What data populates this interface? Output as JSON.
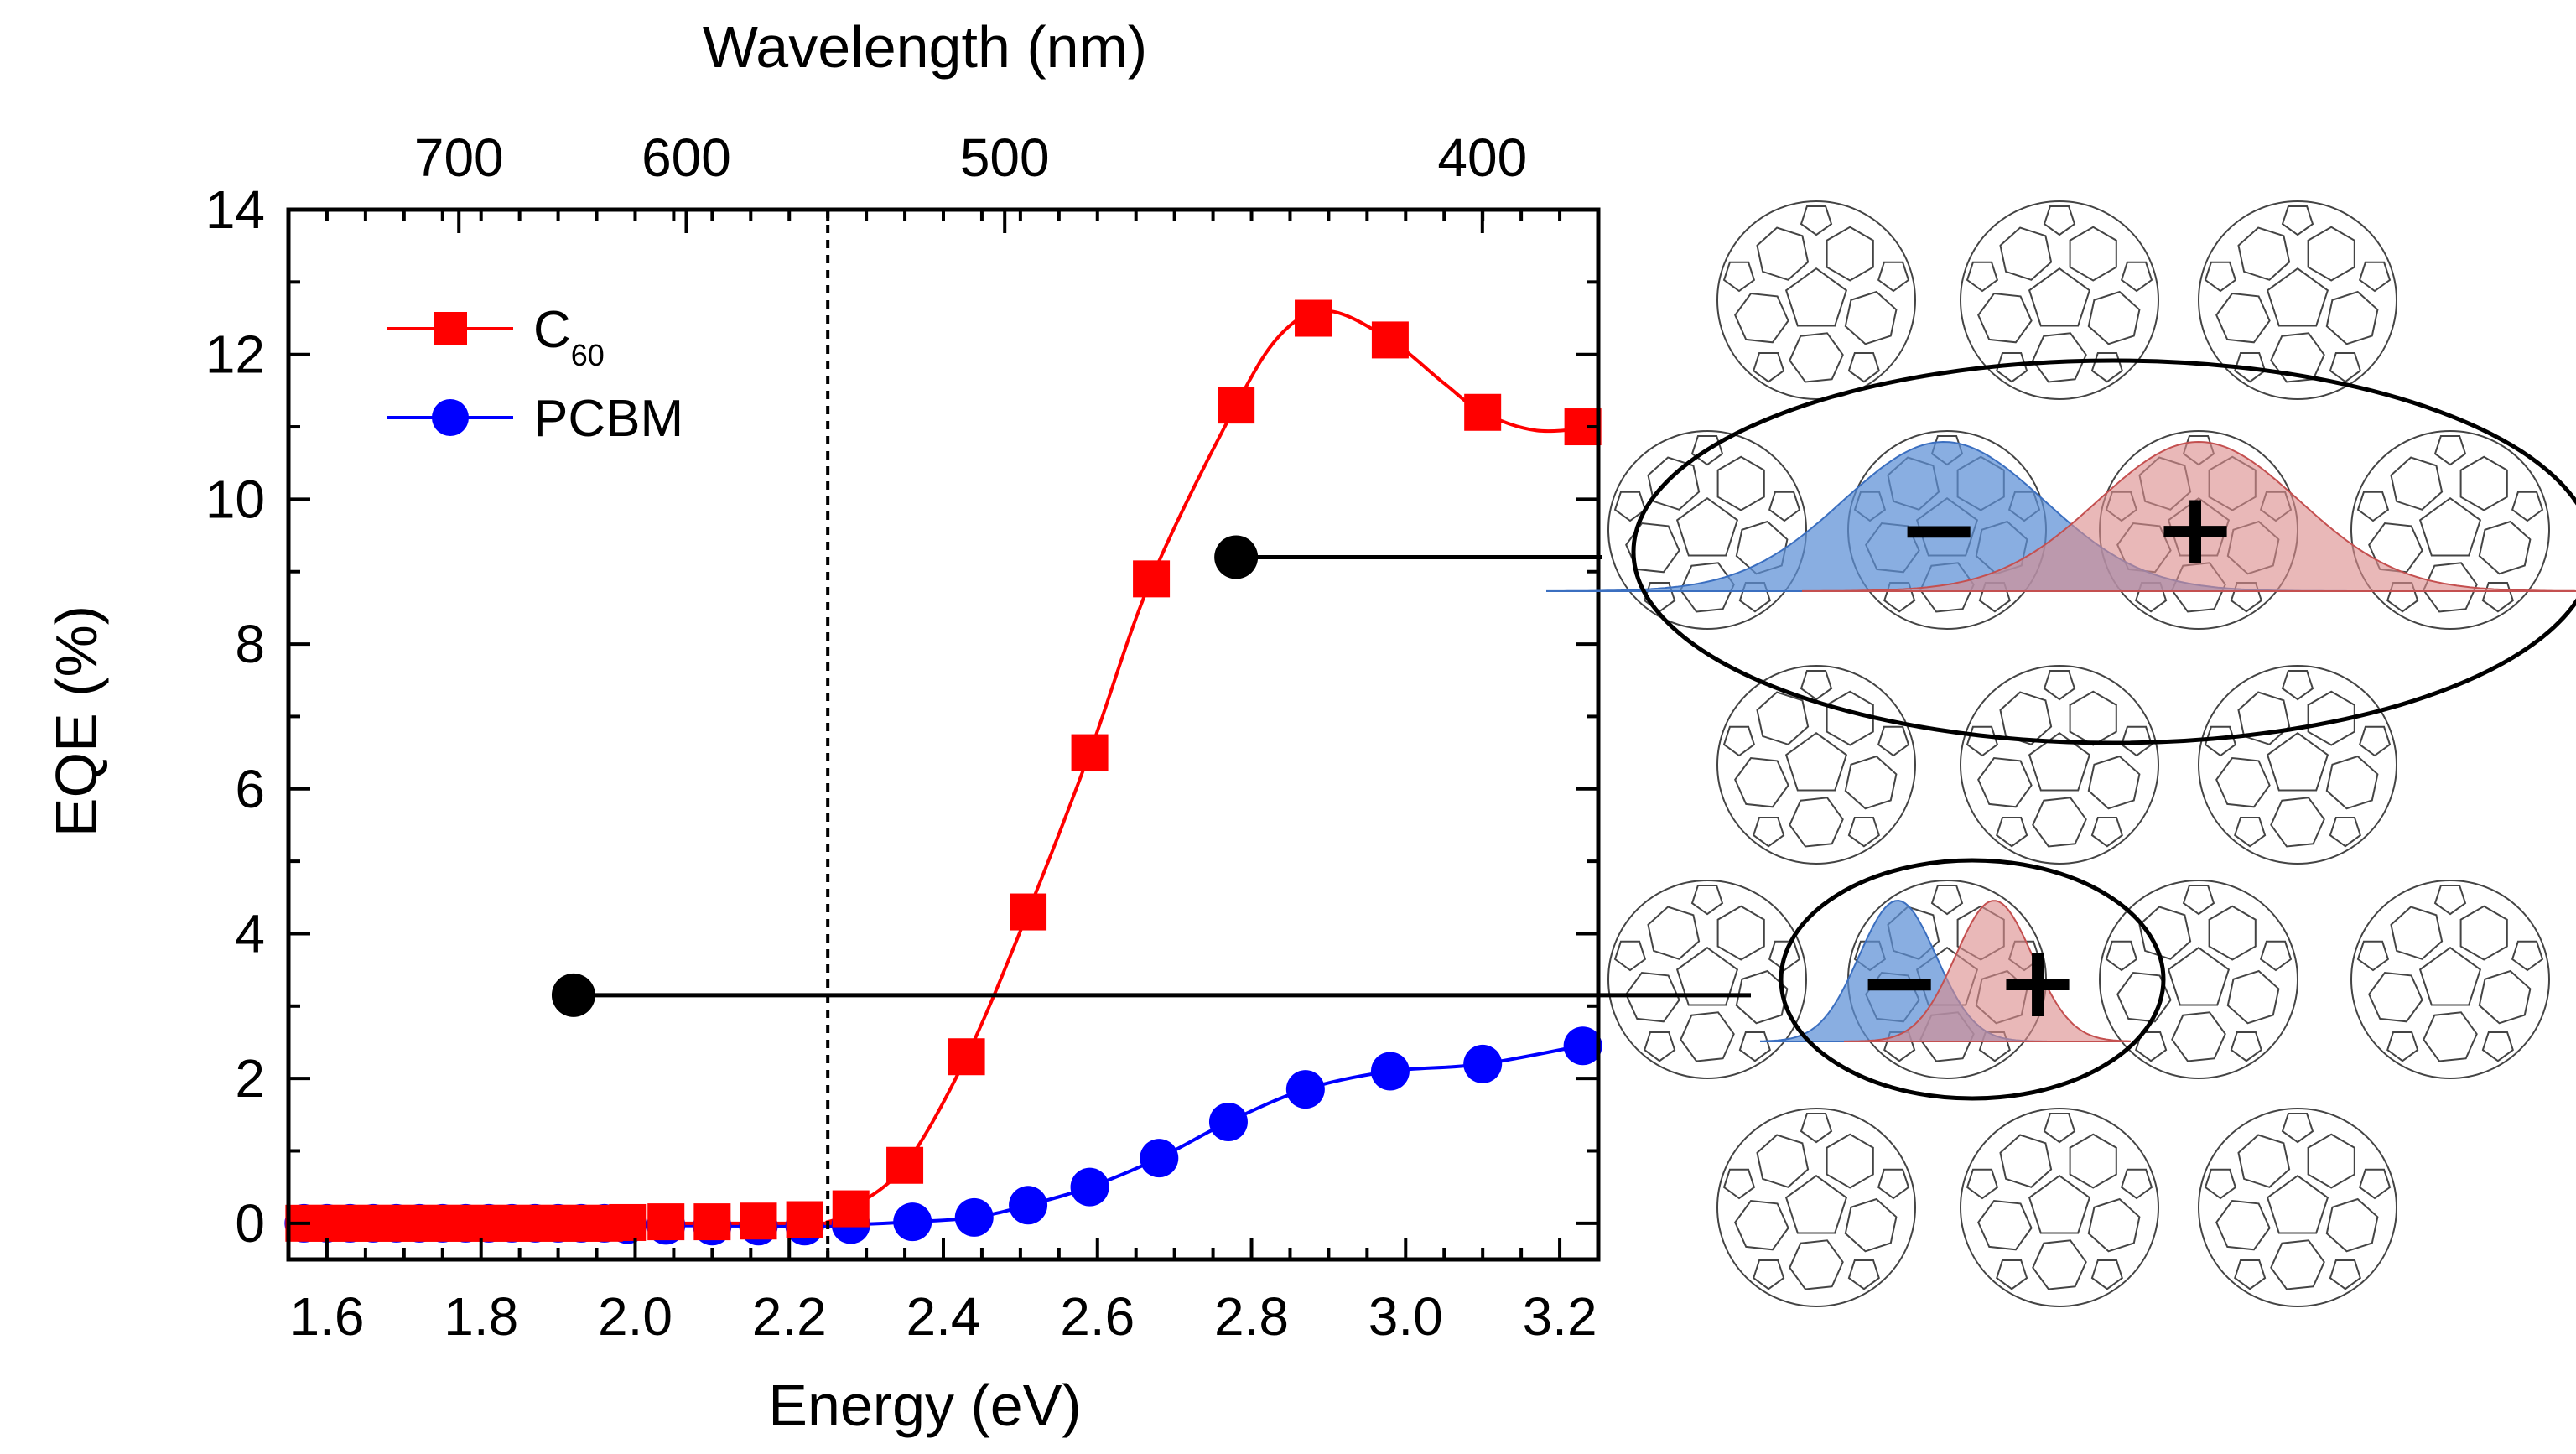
{
  "chart_data": {
    "type": "line",
    "xlabel": "Energy (eV)",
    "ylabel": "EQE (%)",
    "x2label": "Wavelength (nm)",
    "xlim": [
      1.55,
      3.25
    ],
    "ylim": [
      -0.5,
      14
    ],
    "xticks": [
      "1.6",
      "1.8",
      "2.0",
      "2.2",
      "2.4",
      "2.6",
      "2.8",
      "3.0",
      "3.2"
    ],
    "xtick_values": [
      1.6,
      1.8,
      2.0,
      2.2,
      2.4,
      2.6,
      2.8,
      3.0,
      3.2
    ],
    "yticks": [
      "0",
      "2",
      "4",
      "6",
      "8",
      "10",
      "12",
      "14"
    ],
    "ytick_values": [
      0,
      2,
      4,
      6,
      8,
      10,
      12,
      14
    ],
    "x2ticks": [
      "700",
      "600",
      "500",
      "400"
    ],
    "x2tick_values": [
      700,
      600,
      500,
      400
    ],
    "vline_x": 2.25,
    "grid": false,
    "legend_position": "top-left",
    "series": [
      {
        "name": "C",
        "name_sub": "60",
        "color": "#ff0000",
        "marker": "square",
        "points": [
          [
            1.57,
            0.0
          ],
          [
            1.6,
            0.0
          ],
          [
            1.63,
            0.0
          ],
          [
            1.66,
            0.0
          ],
          [
            1.69,
            0.0
          ],
          [
            1.72,
            0.0
          ],
          [
            1.75,
            0.0
          ],
          [
            1.78,
            0.0
          ],
          [
            1.81,
            0.0
          ],
          [
            1.84,
            0.0
          ],
          [
            1.87,
            0.0
          ],
          [
            1.9,
            0.0
          ],
          [
            1.93,
            0.0
          ],
          [
            1.96,
            0.0
          ],
          [
            1.99,
            0.01
          ],
          [
            2.04,
            0.02
          ],
          [
            2.1,
            0.02
          ],
          [
            2.16,
            0.03
          ],
          [
            2.22,
            0.05
          ],
          [
            2.28,
            0.2
          ],
          [
            2.35,
            0.8
          ],
          [
            2.43,
            2.3
          ],
          [
            2.51,
            4.3
          ],
          [
            2.59,
            6.5
          ],
          [
            2.67,
            8.9
          ],
          [
            2.78,
            11.3
          ],
          [
            2.88,
            12.5
          ],
          [
            2.98,
            12.2
          ],
          [
            3.1,
            11.2
          ],
          [
            3.23,
            11.0
          ]
        ],
        "curve": [
          [
            1.55,
            0.0
          ],
          [
            2.2,
            0.0
          ],
          [
            2.25,
            0.02
          ],
          [
            2.28,
            0.2
          ],
          [
            2.35,
            0.8
          ],
          [
            2.43,
            2.3
          ],
          [
            2.51,
            4.3
          ],
          [
            2.59,
            6.5
          ],
          [
            2.67,
            8.9
          ],
          [
            2.78,
            11.3
          ],
          [
            2.84,
            12.3
          ],
          [
            2.9,
            12.6
          ],
          [
            2.98,
            12.2
          ],
          [
            3.05,
            11.6
          ],
          [
            3.1,
            11.2
          ],
          [
            3.17,
            10.95
          ],
          [
            3.25,
            11.0
          ]
        ]
      },
      {
        "name": "PCBM",
        "color": "#0000ff",
        "marker": "circle",
        "points": [
          [
            1.57,
            0.0
          ],
          [
            1.6,
            0.0
          ],
          [
            1.63,
            0.0
          ],
          [
            1.66,
            0.0
          ],
          [
            1.69,
            0.0
          ],
          [
            1.72,
            0.0
          ],
          [
            1.75,
            0.0
          ],
          [
            1.78,
            0.0
          ],
          [
            1.81,
            0.0
          ],
          [
            1.84,
            0.0
          ],
          [
            1.87,
            0.0
          ],
          [
            1.9,
            0.0
          ],
          [
            1.93,
            0.0
          ],
          [
            1.96,
            0.0
          ],
          [
            1.99,
            -0.02
          ],
          [
            2.04,
            -0.03
          ],
          [
            2.1,
            -0.04
          ],
          [
            2.16,
            -0.04
          ],
          [
            2.22,
            -0.04
          ],
          [
            2.28,
            -0.02
          ],
          [
            2.36,
            0.02
          ],
          [
            2.44,
            0.08
          ],
          [
            2.51,
            0.25
          ],
          [
            2.59,
            0.5
          ],
          [
            2.68,
            0.9
          ],
          [
            2.77,
            1.4
          ],
          [
            2.87,
            1.85
          ],
          [
            2.98,
            2.1
          ],
          [
            3.1,
            2.2
          ],
          [
            3.23,
            2.45
          ]
        ],
        "curve": [
          [
            1.55,
            0.0
          ],
          [
            2.2,
            -0.04
          ],
          [
            2.28,
            -0.02
          ],
          [
            2.36,
            0.02
          ],
          [
            2.44,
            0.08
          ],
          [
            2.51,
            0.25
          ],
          [
            2.59,
            0.5
          ],
          [
            2.68,
            0.9
          ],
          [
            2.77,
            1.4
          ],
          [
            2.87,
            1.85
          ],
          [
            2.98,
            2.1
          ],
          [
            3.1,
            2.2
          ],
          [
            3.25,
            2.5
          ]
        ]
      }
    ],
    "annotation_markers": [
      {
        "x": 2.78,
        "y": 9.2
      },
      {
        "x": 1.92,
        "y": 3.15
      }
    ]
  },
  "illustration": {
    "charges": {
      "negative": "−",
      "positive": "+"
    },
    "colors": {
      "electron_fill": "#5b8fd6",
      "hole_fill": "#dc8c8c",
      "electron_edge": "#3b6fc0",
      "hole_edge": "#c45050"
    }
  }
}
